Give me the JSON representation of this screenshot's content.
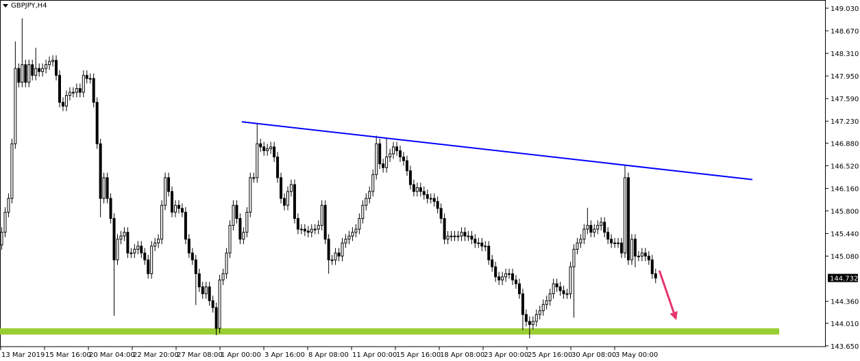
{
  "header": {
    "symbol_timeframe": "GBPJPY,H4",
    "menu_icon": "triangle-down-icon"
  },
  "colors": {
    "background": "#ffffff",
    "bull_body": "#ffffff",
    "bear_body": "#000000",
    "candle_outline": "#000000",
    "trendline": "#0000ff",
    "support_zone": "#9acd32",
    "arrow": "#e8336b",
    "price_label_bg": "#000000",
    "price_label_text": "#ffffff"
  },
  "chart_data": {
    "type": "candlestick",
    "title": "GBPJPY,H4",
    "ylim": [
      143.65,
      149.03
    ],
    "y_ticks": [
      "149.030",
      "148.670",
      "148.310",
      "147.950",
      "147.590",
      "147.230",
      "146.880",
      "146.520",
      "146.160",
      "145.800",
      "145.440",
      "145.080",
      "144.360",
      "144.010",
      "143.650"
    ],
    "x_ticks": [
      "13 Mar 2019",
      "15 Mar 16:00",
      "20 Mar 04:00",
      "22 Mar 20:00",
      "27 Mar 08:00",
      "1 Apr 00:00",
      "3 Apr 16:00",
      "8 Apr 08:00",
      "11 Apr 00:00",
      "15 Apr 16:00",
      "18 Apr 08:00",
      "23 Apr 00:00",
      "25 Apr 16:00",
      "30 Apr 08:00",
      "3 May 00:00"
    ],
    "current_price": "144.732",
    "close": [
      145.46,
      145.78,
      146.0,
      146.87,
      148.07,
      147.85,
      148.13,
      147.85,
      148.13,
      147.96,
      148.07,
      148.02,
      148.07,
      148.13,
      148.18,
      148.2,
      147.96,
      147.53,
      147.47,
      147.64,
      147.69,
      147.69,
      147.75,
      147.69,
      147.96,
      147.91,
      147.91,
      147.53,
      146.87,
      146.0,
      146.33,
      146.0,
      145.68,
      145.02,
      145.35,
      145.4,
      145.46,
      145.13,
      145.13,
      145.19,
      145.24,
      145.13,
      145.02,
      144.8,
      145.24,
      145.29,
      145.35,
      145.89,
      146.33,
      146.11,
      145.78,
      145.89,
      145.84,
      145.78,
      145.35,
      145.13,
      145.02,
      144.8,
      144.59,
      144.48,
      144.59,
      144.37,
      144.26,
      143.93,
      144.7,
      144.8,
      145.13,
      145.57,
      145.89,
      145.68,
      145.35,
      145.46,
      145.78,
      146.33,
      146.33,
      146.87,
      146.82,
      146.76,
      146.79,
      146.82,
      146.66,
      146.33,
      146.0,
      145.89,
      146.11,
      146.22,
      145.68,
      145.51,
      145.51,
      145.48,
      145.46,
      145.51,
      145.51,
      145.57,
      145.89,
      145.35,
      145.02,
      145.02,
      145.13,
      145.08,
      145.29,
      145.35,
      145.4,
      145.46,
      145.51,
      145.68,
      145.89,
      146.0,
      146.11,
      146.38,
      146.87,
      146.55,
      146.49,
      146.66,
      146.71,
      146.82,
      146.76,
      146.66,
      146.6,
      146.44,
      146.22,
      146.11,
      146.17,
      146.11,
      146.06,
      146.0,
      146.0,
      145.95,
      145.84,
      145.68,
      145.35,
      145.4,
      145.4,
      145.4,
      145.4,
      145.46,
      145.4,
      145.4,
      145.35,
      145.29,
      145.29,
      145.24,
      145.24,
      145.02,
      144.91,
      144.75,
      144.7,
      144.75,
      144.8,
      144.8,
      144.7,
      144.64,
      144.48,
      144.15,
      144.04,
      143.99,
      144.04,
      144.15,
      144.21,
      144.31,
      144.37,
      144.48,
      144.64,
      144.59,
      144.53,
      144.48,
      144.48,
      144.91,
      145.19,
      145.29,
      145.35,
      145.51,
      145.57,
      145.46,
      145.51,
      145.57,
      145.62,
      145.46,
      145.35,
      145.29,
      145.29,
      145.29,
      145.13,
      146.33,
      145.02,
      145.35,
      145.08,
      145.08,
      145.13,
      145.08,
      145.02,
      144.8,
      144.73
    ],
    "high_extremes": {
      "4": 148.5,
      "6": 148.87,
      "10": 148.4,
      "75": 147.2,
      "110": 147.0,
      "113": 146.95,
      "183": 146.52,
      "172": 145.85
    },
    "low_extremes": {
      "33": 144.13,
      "29": 145.7,
      "63": 143.82,
      "57": 144.3,
      "96": 144.8,
      "155": 143.77,
      "153": 143.9,
      "168": 144.1,
      "186": 144.9
    },
    "trendline": {
      "start": {
        "bar": 70.6,
        "price": 147.22
      },
      "end": {
        "bar": 220.5,
        "price": 146.3
      }
    },
    "support_zone": {
      "from_bar": 0,
      "to_bar": 228.4,
      "top": 143.93,
      "bottom": 143.83
    },
    "arrow": {
      "start": {
        "bar": 193.2,
        "price": 144.85
      },
      "end": {
        "bar": 198.2,
        "price": 144.06
      }
    }
  }
}
